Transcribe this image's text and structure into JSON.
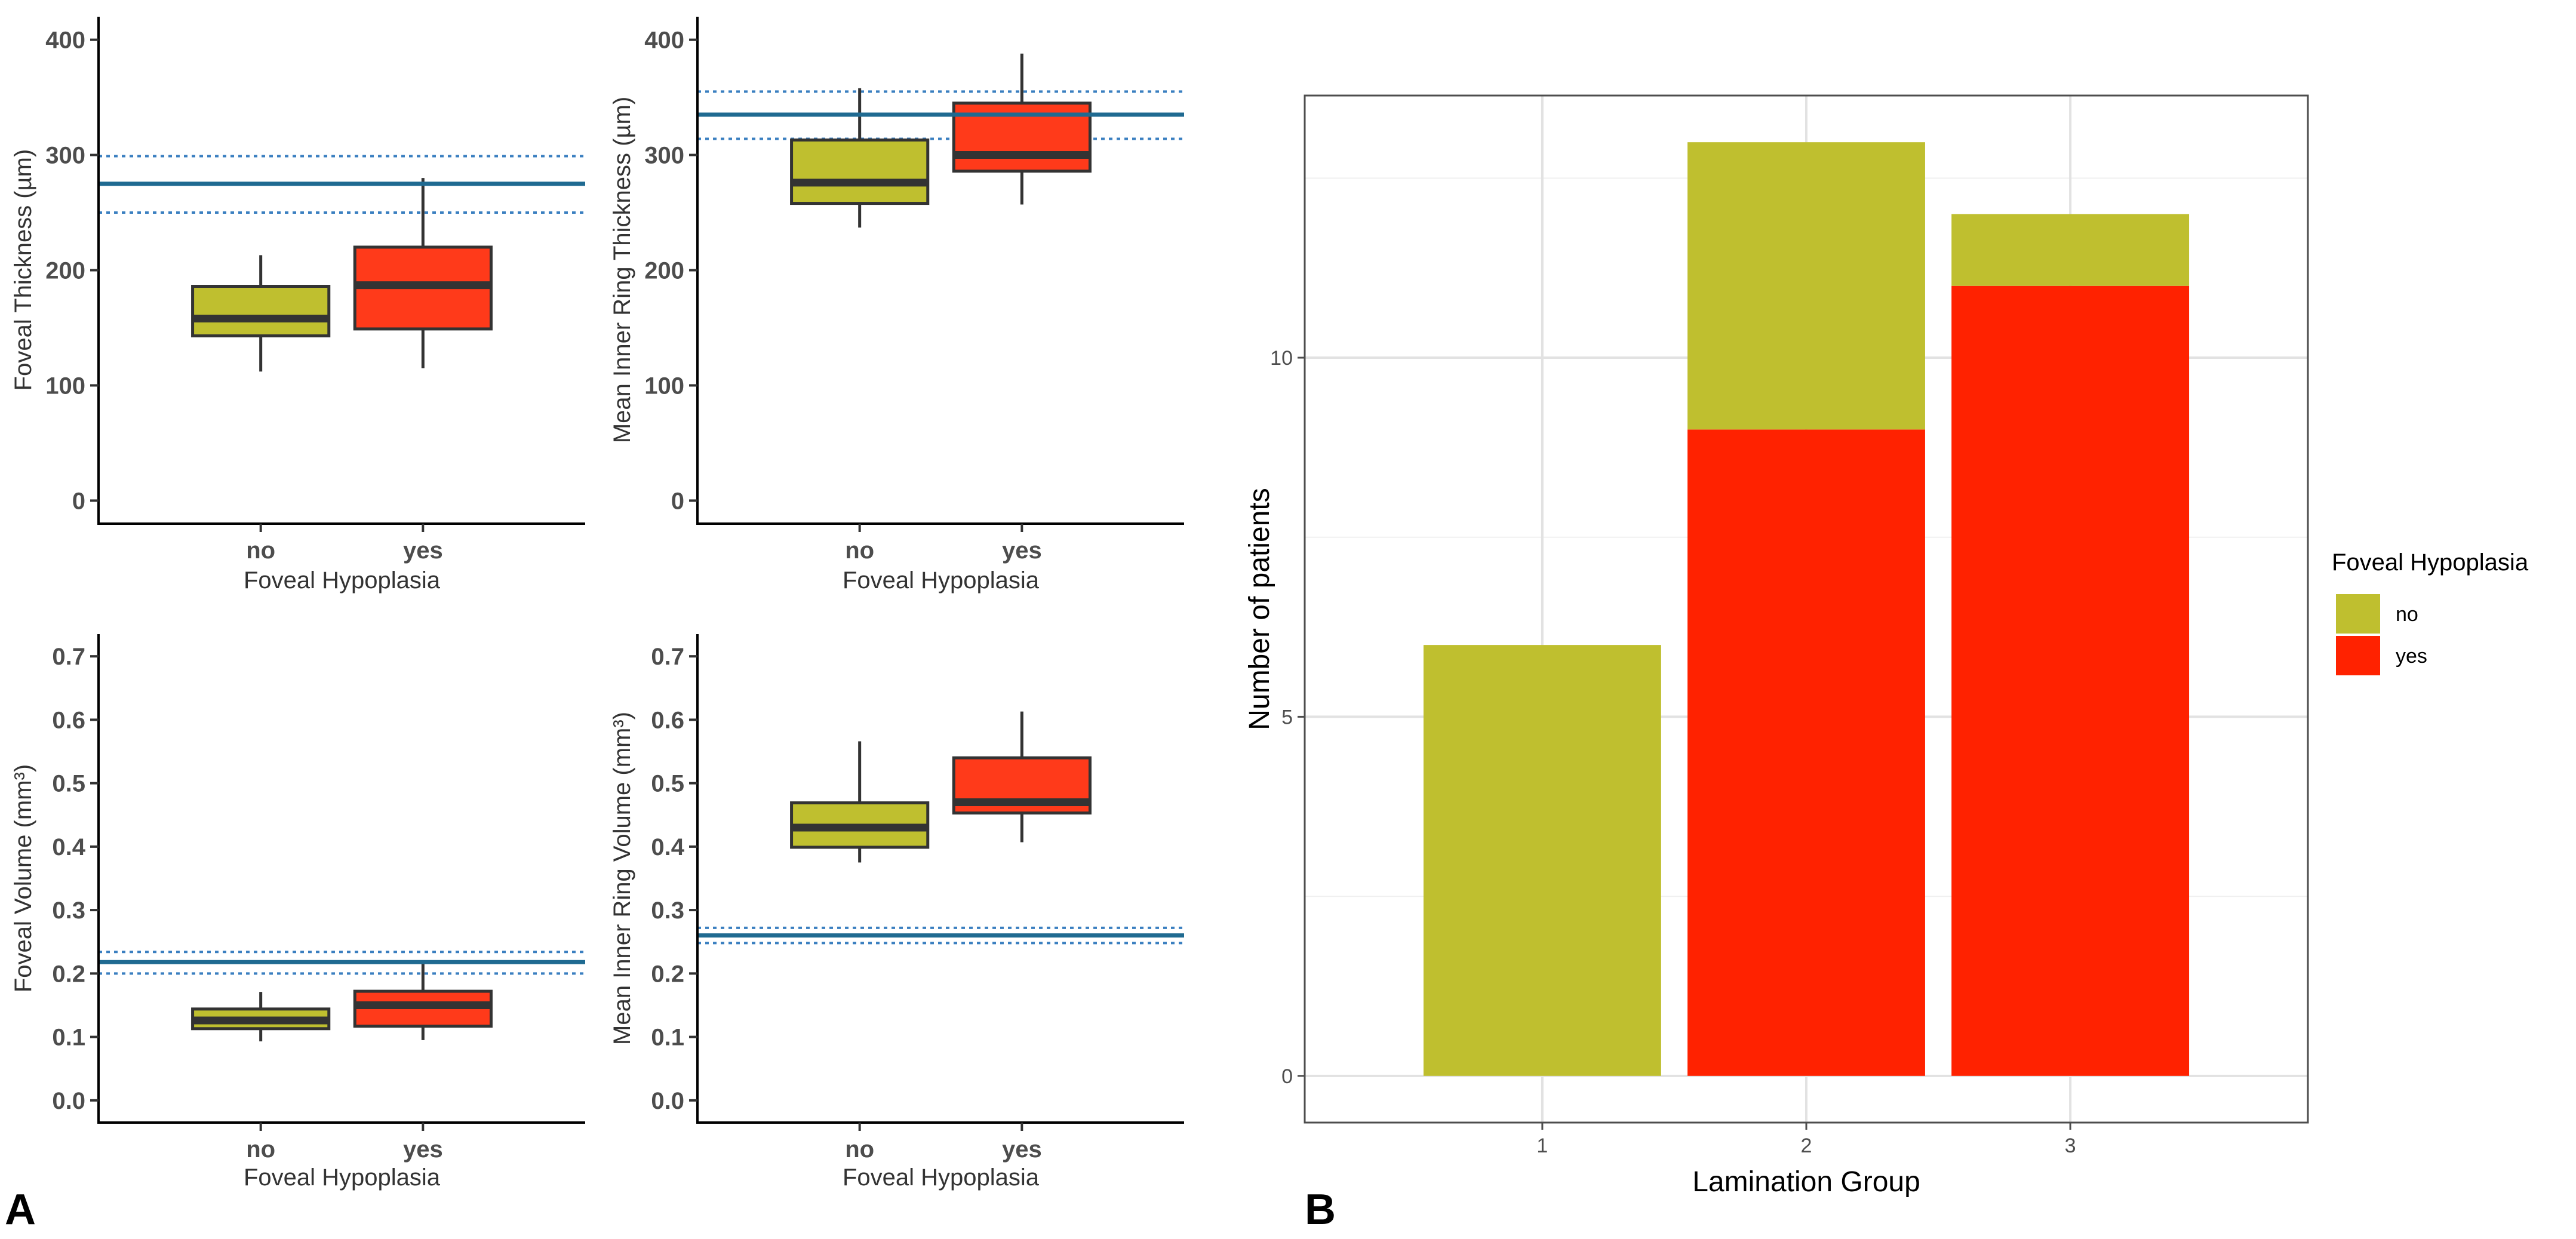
{
  "panel_labels": {
    "a": "A",
    "b": "B"
  },
  "colors": {
    "no": "#bfbf2f",
    "yes": "#ff3a1a",
    "yes_bar": "#ff2200",
    "ref_line": "#1f6a91",
    "ref_dotted": "#3a7fc0",
    "box_stroke": "#333333"
  },
  "chart_data": [
    {
      "id": "foveal_thickness",
      "type": "box",
      "xlabel": "Foveal Hypoplasia",
      "ylabel": "Foveal Thickness (µm)",
      "categories": [
        "no",
        "yes"
      ],
      "ylim": [
        -20,
        420
      ],
      "yticks": [
        0,
        100,
        200,
        300,
        400
      ],
      "ytick_labels": [
        "0",
        "100",
        "200",
        "300",
        "400"
      ],
      "boxes": [
        {
          "name": "no",
          "min": 112,
          "q1": 143,
          "median": 158,
          "q3": 186,
          "max": 213
        },
        {
          "name": "yes",
          "min": 115,
          "q1": 149,
          "median": 187,
          "q3": 220,
          "max": 280
        }
      ],
      "ref_line": 275,
      "ref_band": [
        250,
        299
      ]
    },
    {
      "id": "inner_ring_thickness",
      "type": "box",
      "xlabel": "Foveal Hypoplasia",
      "ylabel": "Mean Inner Ring Thickness (µm)",
      "categories": [
        "no",
        "yes"
      ],
      "ylim": [
        -20,
        420
      ],
      "yticks": [
        0,
        100,
        200,
        300,
        400
      ],
      "ytick_labels": [
        "0",
        "100",
        "200",
        "300",
        "400"
      ],
      "boxes": [
        {
          "name": "no",
          "min": 237,
          "q1": 258,
          "median": 276,
          "q3": 313,
          "max": 358
        },
        {
          "name": "yes",
          "min": 257,
          "q1": 286,
          "median": 300,
          "q3": 345,
          "max": 388
        }
      ],
      "ref_line": 335,
      "ref_band": [
        314,
        355
      ]
    },
    {
      "id": "foveal_volume",
      "type": "box",
      "xlabel": "Foveal Hypoplasia",
      "ylabel": "Foveal Volume (mm³)",
      "categories": [
        "no",
        "yes"
      ],
      "ylim": [
        -0.035,
        0.735
      ],
      "yticks": [
        0,
        0.1,
        0.2,
        0.3,
        0.4,
        0.5,
        0.6,
        0.7
      ],
      "ytick_labels": [
        "0.0",
        "0.1",
        "0.2",
        "0.3",
        "0.4",
        "0.5",
        "0.6",
        "0.7"
      ],
      "boxes": [
        {
          "name": "no",
          "min": 0.093,
          "q1": 0.113,
          "median": 0.126,
          "q3": 0.144,
          "max": 0.171
        },
        {
          "name": "yes",
          "min": 0.095,
          "q1": 0.117,
          "median": 0.15,
          "q3": 0.172,
          "max": 0.216
        }
      ],
      "ref_line": 0.218,
      "ref_band": [
        0.2,
        0.234
      ]
    },
    {
      "id": "inner_ring_volume",
      "type": "box",
      "xlabel": "Foveal Hypoplasia",
      "ylabel": "Mean Inner Ring Volume (mm³)",
      "categories": [
        "no",
        "yes"
      ],
      "ylim": [
        -0.035,
        0.735
      ],
      "yticks": [
        0,
        0.1,
        0.2,
        0.3,
        0.4,
        0.5,
        0.6,
        0.7
      ],
      "ytick_labels": [
        "0.0",
        "0.1",
        "0.2",
        "0.3",
        "0.4",
        "0.5",
        "0.6",
        "0.7"
      ],
      "boxes": [
        {
          "name": "no",
          "min": 0.375,
          "q1": 0.399,
          "median": 0.43,
          "q3": 0.469,
          "max": 0.566
        },
        {
          "name": "yes",
          "min": 0.407,
          "q1": 0.453,
          "median": 0.47,
          "q3": 0.54,
          "max": 0.613
        }
      ],
      "ref_line": 0.26,
      "ref_band": [
        0.248,
        0.272
      ]
    },
    {
      "id": "lamination_group",
      "type": "bar",
      "stacked": true,
      "xlabel": "Lamination Group",
      "ylabel": "Number of patients",
      "categories": [
        "1",
        "2",
        "3"
      ],
      "series": [
        {
          "name": "yes",
          "values": [
            0,
            9,
            11
          ]
        },
        {
          "name": "no",
          "values": [
            6,
            4,
            1
          ]
        }
      ],
      "ylim": [
        -0.65,
        13.65
      ],
      "yticks": [
        0,
        5,
        10
      ],
      "ytick_labels": [
        "0",
        "5",
        "10"
      ],
      "grid": true,
      "legend": {
        "title": "Foveal Hypoplasia",
        "entries": [
          "no",
          "yes"
        ],
        "placement": "right"
      }
    }
  ]
}
